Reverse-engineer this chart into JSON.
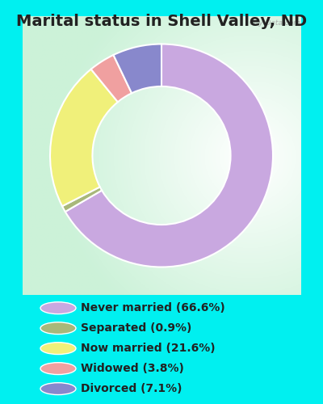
{
  "title": "Marital status in Shell Valley, ND",
  "slices": [
    66.6,
    0.9,
    21.6,
    3.8,
    7.1
  ],
  "labels": [
    "Never married (66.6%)",
    "Separated (0.9%)",
    "Now married (21.6%)",
    "Widowed (3.8%)",
    "Divorced (7.1%)"
  ],
  "colors": [
    "#c9a8e0",
    "#a8b87a",
    "#f0f07a",
    "#f0a0a0",
    "#8888cc"
  ],
  "bg_color": "#00f0f0",
  "chart_bg_color": "#e8f5e8",
  "title_fontsize": 14,
  "title_color": "#222222",
  "legend_text_color": "#222222",
  "legend_fontsize": 10,
  "watermark": "City-Data.com",
  "startangle": 90,
  "donut_width": 0.38
}
